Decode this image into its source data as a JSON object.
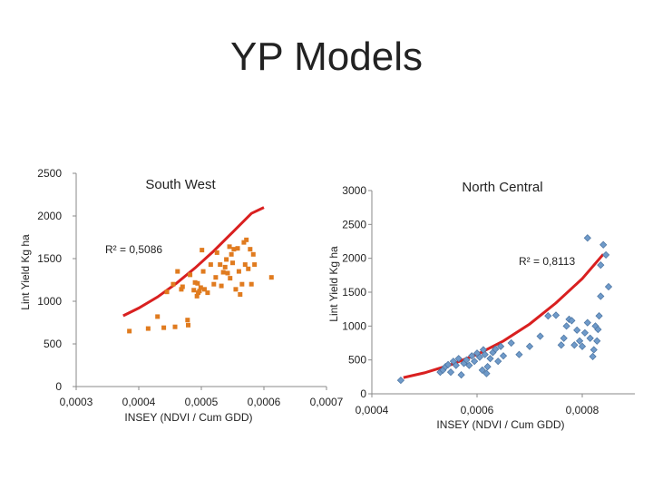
{
  "page": {
    "title": "YP Models"
  },
  "chart_data": [
    {
      "type": "scatter",
      "title": "South West",
      "xlabel": "INSEY (NDVI / Cum GDD)",
      "ylabel": "Lint Yield Kg ha",
      "xlim": [
        0.0003,
        0.0007
      ],
      "ylim": [
        0,
        2500
      ],
      "xticks": [
        0.0003,
        0.0004,
        0.0005,
        0.0006,
        0.0007
      ],
      "xtick_labels": [
        "0,0003",
        "0,0004",
        "0,0005",
        "0,0006",
        "0,0007"
      ],
      "yticks": [
        0,
        500,
        1000,
        1500,
        2000,
        2500
      ],
      "ytick_labels": [
        "0",
        "500",
        "1000",
        "1500",
        "2000",
        "2500"
      ],
      "r2_label": "R² = 0,5086",
      "marker_color": "#e07b1f",
      "marker": "square",
      "trend_color": "#d92020",
      "points": [
        [
          0.000385,
          650
        ],
        [
          0.000415,
          680
        ],
        [
          0.00043,
          820
        ],
        [
          0.00044,
          690
        ],
        [
          0.000445,
          1110
        ],
        [
          0.000455,
          1200
        ],
        [
          0.000458,
          700
        ],
        [
          0.000462,
          1350
        ],
        [
          0.000468,
          1140
        ],
        [
          0.00047,
          1170
        ],
        [
          0.000478,
          780
        ],
        [
          0.000479,
          720
        ],
        [
          0.000482,
          1310
        ],
        [
          0.000488,
          1130
        ],
        [
          0.00049,
          1220
        ],
        [
          0.000493,
          1060
        ],
        [
          0.000494,
          1210
        ],
        [
          0.000495,
          1100
        ],
        [
          0.000497,
          1120
        ],
        [
          0.000499,
          1160
        ],
        [
          0.000501,
          1600
        ],
        [
          0.000503,
          1350
        ],
        [
          0.000505,
          1140
        ],
        [
          0.00051,
          1100
        ],
        [
          0.000515,
          1430
        ],
        [
          0.00052,
          1200
        ],
        [
          0.000523,
          1280
        ],
        [
          0.000525,
          1570
        ],
        [
          0.00053,
          1430
        ],
        [
          0.000532,
          1180
        ],
        [
          0.000535,
          1340
        ],
        [
          0.000538,
          1400
        ],
        [
          0.00054,
          1490
        ],
        [
          0.000542,
          1330
        ],
        [
          0.000545,
          1640
        ],
        [
          0.000546,
          1270
        ],
        [
          0.000548,
          1550
        ],
        [
          0.00055,
          1450
        ],
        [
          0.000552,
          1610
        ],
        [
          0.000555,
          1140
        ],
        [
          0.000558,
          1620
        ],
        [
          0.00056,
          1350
        ],
        [
          0.000562,
          1080
        ],
        [
          0.000565,
          1200
        ],
        [
          0.000568,
          1690
        ],
        [
          0.00057,
          1430
        ],
        [
          0.000572,
          1720
        ],
        [
          0.000575,
          1380
        ],
        [
          0.000578,
          1610
        ],
        [
          0.00058,
          1200
        ],
        [
          0.000583,
          1550
        ],
        [
          0.000585,
          1430
        ],
        [
          0.000612,
          1280
        ]
      ],
      "trend": [
        [
          0.000375,
          830
        ],
        [
          0.0004,
          920
        ],
        [
          0.00043,
          1050
        ],
        [
          0.00046,
          1210
        ],
        [
          0.00049,
          1390
        ],
        [
          0.00052,
          1590
        ],
        [
          0.00055,
          1810
        ],
        [
          0.00058,
          2030
        ],
        [
          0.0006,
          2100
        ]
      ]
    },
    {
      "type": "scatter",
      "title": "North Central",
      "xlabel": "INSEY (NDVI / Cum GDD)",
      "ylabel": "Lint Yield Kg ha",
      "xlim": [
        0.0004,
        0.0009
      ],
      "ylim": [
        0,
        3000
      ],
      "xticks": [
        0.0004,
        0.0006,
        0.0008
      ],
      "xtick_labels": [
        "0,0004",
        "0,0006",
        "0,0008"
      ],
      "yticks": [
        0,
        500,
        1000,
        1500,
        2000,
        2500,
        3000
      ],
      "ytick_labels": [
        "0",
        "500",
        "1000",
        "1500",
        "2000",
        "2500",
        "3000"
      ],
      "r2_label": "R² = 0,8113",
      "marker_color": "#6f9ac9",
      "marker": "diamond",
      "trend_color": "#d92020",
      "points": [
        [
          0.000455,
          200
        ],
        [
          0.00053,
          320
        ],
        [
          0.000535,
          350
        ],
        [
          0.00054,
          400
        ],
        [
          0.000545,
          430
        ],
        [
          0.00055,
          320
        ],
        [
          0.000555,
          480
        ],
        [
          0.00056,
          420
        ],
        [
          0.000565,
          520
        ],
        [
          0.00057,
          280
        ],
        [
          0.000575,
          450
        ],
        [
          0.00058,
          500
        ],
        [
          0.000585,
          420
        ],
        [
          0.00059,
          560
        ],
        [
          0.000595,
          480
        ],
        [
          0.0006,
          600
        ],
        [
          0.000605,
          540
        ],
        [
          0.00061,
          350
        ],
        [
          0.000612,
          650
        ],
        [
          0.000615,
          580
        ],
        [
          0.000618,
          300
        ],
        [
          0.00062,
          400
        ],
        [
          0.000625,
          520
        ],
        [
          0.00063,
          610
        ],
        [
          0.000635,
          660
        ],
        [
          0.00064,
          480
        ],
        [
          0.000645,
          700
        ],
        [
          0.00065,
          560
        ],
        [
          0.000665,
          750
        ],
        [
          0.00068,
          580
        ],
        [
          0.0007,
          700
        ],
        [
          0.00072,
          850
        ],
        [
          0.000735,
          1150
        ],
        [
          0.00075,
          1160
        ],
        [
          0.00076,
          720
        ],
        [
          0.000765,
          820
        ],
        [
          0.00077,
          1000
        ],
        [
          0.000775,
          1100
        ],
        [
          0.00078,
          1080
        ],
        [
          0.000785,
          720
        ],
        [
          0.00079,
          940
        ],
        [
          0.000795,
          780
        ],
        [
          0.0008,
          700
        ],
        [
          0.000805,
          900
        ],
        [
          0.00081,
          1050
        ],
        [
          0.000815,
          820
        ],
        [
          0.00082,
          550
        ],
        [
          0.000822,
          650
        ],
        [
          0.000825,
          1000
        ],
        [
          0.000828,
          780
        ],
        [
          0.00083,
          950
        ],
        [
          0.000832,
          1150
        ],
        [
          0.00081,
          2300
        ],
        [
          0.000835,
          1900
        ],
        [
          0.000835,
          1440
        ],
        [
          0.00084,
          2200
        ],
        [
          0.000845,
          2050
        ],
        [
          0.00085,
          1580
        ]
      ],
      "trend": [
        [
          0.00046,
          240
        ],
        [
          0.0005,
          310
        ],
        [
          0.00055,
          430
        ],
        [
          0.0006,
          580
        ],
        [
          0.00065,
          780
        ],
        [
          0.0007,
          1030
        ],
        [
          0.00075,
          1340
        ],
        [
          0.0008,
          1700
        ],
        [
          0.00084,
          2060
        ]
      ]
    }
  ]
}
